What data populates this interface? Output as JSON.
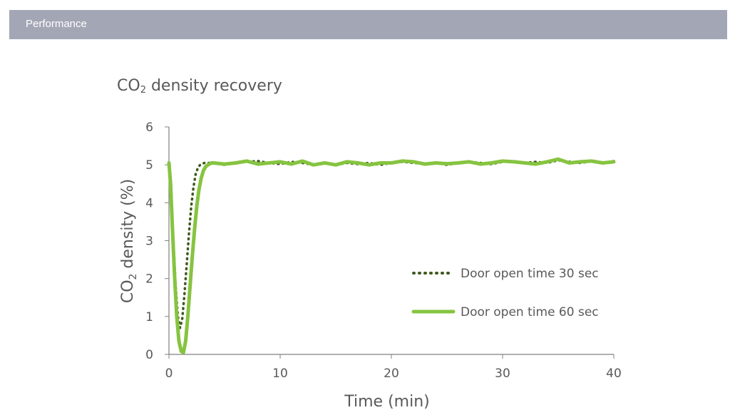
{
  "header": {
    "title": "Performance"
  },
  "colors": {
    "header_bg": "#a3a6b5",
    "series_30": "#3e5a1f",
    "series_60": "#86c440",
    "axis": "#808080",
    "text": "#595959"
  },
  "chart_data": {
    "type": "line",
    "title_prefix": "CO",
    "title_subscript": "2",
    "title_suffix": " density recovery",
    "xlabel": "Time (min)",
    "ylabel_prefix": "CO",
    "ylabel_subscript": "2",
    "ylabel_suffix": " density (%)",
    "xlim": [
      0,
      40
    ],
    "ylim": [
      0,
      6
    ],
    "xticks": [
      "0",
      "10",
      "20",
      "30",
      "40"
    ],
    "yticks": [
      "0",
      "1",
      "2",
      "3",
      "4",
      "5",
      "6"
    ],
    "grid": false,
    "legend_position": "center-right",
    "series": [
      {
        "name": "Door open time 30 sec",
        "style": "dotted",
        "x": [
          0,
          0.2,
          0.4,
          0.6,
          0.8,
          1.0,
          1.2,
          1.4,
          1.6,
          1.8,
          2.0,
          2.2,
          2.4,
          2.6,
          2.8,
          3.0,
          3.2,
          3.5,
          4,
          5,
          6,
          7,
          8,
          9,
          10,
          11,
          12,
          13,
          14,
          15,
          16,
          17,
          18,
          19,
          20,
          21,
          22,
          23,
          24,
          25,
          26,
          27,
          28,
          29,
          30,
          31,
          32,
          33,
          34,
          35,
          36,
          37,
          38,
          39,
          40
        ],
        "y": [
          5.05,
          4.2,
          3.0,
          1.8,
          1.0,
          0.7,
          0.95,
          1.6,
          2.4,
          3.2,
          3.9,
          4.4,
          4.75,
          4.92,
          5.0,
          5.03,
          5.05,
          5.05,
          5.05,
          5.0,
          5.05,
          5.08,
          5.1,
          5.05,
          5.02,
          5.08,
          5.05,
          5.0,
          5.05,
          5.0,
          5.05,
          5.02,
          5.05,
          5.0,
          5.05,
          5.08,
          5.05,
          5.03,
          5.05,
          5.0,
          5.05,
          5.08,
          5.05,
          5.02,
          5.08,
          5.1,
          5.05,
          5.08,
          5.05,
          5.12,
          5.08,
          5.05,
          5.1,
          5.05,
          5.1
        ]
      },
      {
        "name": "Door open time 60 sec",
        "style": "solid",
        "x": [
          0,
          0.15,
          0.3,
          0.5,
          0.7,
          0.9,
          1.1,
          1.3,
          1.5,
          1.7,
          1.9,
          2.1,
          2.3,
          2.5,
          2.7,
          2.9,
          3.1,
          3.3,
          3.5,
          3.8,
          4,
          5,
          6,
          7,
          8,
          9,
          10,
          11,
          12,
          13,
          14,
          15,
          16,
          17,
          18,
          19,
          20,
          21,
          22,
          23,
          24,
          25,
          26,
          27,
          28,
          29,
          30,
          31,
          32,
          33,
          34,
          35,
          36,
          37,
          38,
          39,
          40
        ],
        "y": [
          5.05,
          4.5,
          3.4,
          2.1,
          1.0,
          0.35,
          0.08,
          0.05,
          0.35,
          1.0,
          1.8,
          2.6,
          3.3,
          3.9,
          4.35,
          4.65,
          4.85,
          4.95,
          5.0,
          5.05,
          5.05,
          5.02,
          5.05,
          5.1,
          5.02,
          5.05,
          5.08,
          5.02,
          5.1,
          5.0,
          5.05,
          5.0,
          5.08,
          5.05,
          5.0,
          5.05,
          5.05,
          5.1,
          5.08,
          5.02,
          5.05,
          5.03,
          5.05,
          5.08,
          5.02,
          5.05,
          5.1,
          5.08,
          5.05,
          5.02,
          5.08,
          5.15,
          5.05,
          5.08,
          5.1,
          5.05,
          5.08
        ]
      }
    ]
  }
}
